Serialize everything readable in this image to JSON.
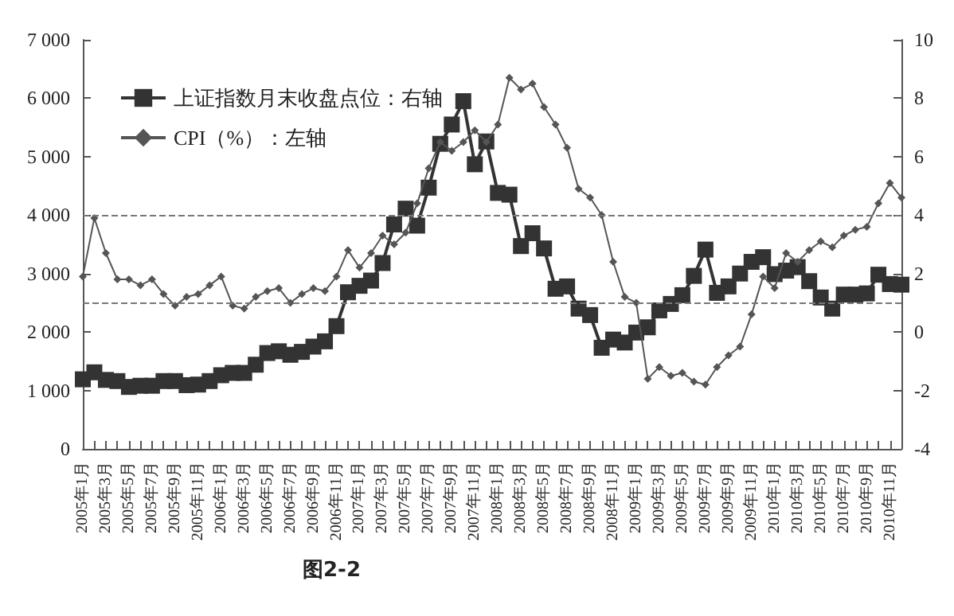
{
  "chart_data": {
    "type": "line",
    "categories": [
      "2005年1月",
      null,
      "2005年3月",
      null,
      "2005年5月",
      null,
      "2005年7月",
      null,
      "2005年9月",
      null,
      "2005年11月",
      null,
      "2006年1月",
      null,
      "2006年3月",
      null,
      "2006年5月",
      null,
      "2006年7月",
      null,
      "2006年9月",
      null,
      "2006年11月",
      null,
      "2007年1月",
      null,
      "2007年3月",
      null,
      "2007年5月",
      null,
      "2007年7月",
      null,
      "2007年9月",
      null,
      "2007年11月",
      null,
      "2008年1月",
      null,
      "2008年3月",
      null,
      "2008年5月",
      null,
      "2008年7月",
      null,
      "2008年9月",
      null,
      "2008年11月",
      null,
      "2009年1月",
      null,
      "2009年3月",
      null,
      "2009年5月",
      null,
      "2009年7月",
      null,
      "2009年9月",
      null,
      "2009年11月",
      null,
      "2010年1月",
      null,
      "2010年3月",
      null,
      "2010年5月",
      null,
      "2010年7月",
      null,
      "2010年9月",
      null,
      "2010年11月",
      null
    ],
    "series": [
      {
        "name": "上证指数月末收盘点位：右轴",
        "color": "#333333",
        "marker": "square",
        "axis": "y",
        "values": [
          1190,
          1310,
          1180,
          1160,
          1060,
          1080,
          1080,
          1160,
          1160,
          1090,
          1100,
          1160,
          1260,
          1300,
          1300,
          1440,
          1640,
          1670,
          1610,
          1660,
          1750,
          1840,
          2100,
          2680,
          2790,
          2880,
          3180,
          3840,
          4110,
          3820,
          4470,
          5220,
          5550,
          5950,
          4870,
          5260,
          4380,
          4350,
          3470,
          3690,
          3430,
          2740,
          2780,
          2400,
          2290,
          1730,
          1870,
          1820,
          1990,
          2080,
          2370,
          2480,
          2630,
          2960,
          3410,
          2670,
          2780,
          3000,
          3200,
          3280,
          2990,
          3050,
          3110,
          2870,
          2590,
          2400,
          2640,
          2640,
          2660,
          2980,
          2820,
          2810
        ]
      },
      {
        "name": "CPI（%）：左轴",
        "color": "#555555",
        "marker": "diamond",
        "axis": "y2",
        "values": [
          1.9,
          3.9,
          2.7,
          1.8,
          1.8,
          1.6,
          1.8,
          1.3,
          0.9,
          1.2,
          1.3,
          1.6,
          1.9,
          0.9,
          0.8,
          1.2,
          1.4,
          1.5,
          1.0,
          1.3,
          1.5,
          1.4,
          1.9,
          2.8,
          2.2,
          2.7,
          3.3,
          3.0,
          3.4,
          4.4,
          5.6,
          6.5,
          6.2,
          6.5,
          6.9,
          6.5,
          7.1,
          8.7,
          8.3,
          8.5,
          7.7,
          7.1,
          6.3,
          4.9,
          4.6,
          4.0,
          2.4,
          1.2,
          1.0,
          -1.6,
          -1.2,
          -1.5,
          -1.4,
          -1.7,
          -1.8,
          -1.2,
          -0.8,
          -0.5,
          0.6,
          1.9,
          1.5,
          2.7,
          2.4,
          2.8,
          3.1,
          2.9,
          3.3,
          3.5,
          3.6,
          4.4,
          5.1,
          4.6
        ]
      }
    ],
    "ylim": [
      0,
      7000
    ],
    "yticks": [
      0,
      {
        "value": 1000,
        "label": "1 000"
      },
      {
        "value": 2000,
        "label": "2 000"
      },
      {
        "value": 3000,
        "label": "3 000"
      },
      {
        "value": 4000,
        "label": "4 000"
      },
      {
        "value": 5000,
        "label": "5 000"
      },
      {
        "value": 6000,
        "label": "6 000"
      },
      {
        "value": 7000,
        "label": "7 000"
      }
    ],
    "y2lim": [
      -4,
      10
    ],
    "y2ticks": [
      -4,
      -2,
      0,
      2,
      4,
      6,
      8,
      10
    ],
    "ref_lines": [
      {
        "axis": "y2",
        "value": 4,
        "color": "#777777",
        "line_style": "dashed"
      },
      {
        "axis": "y2",
        "value": 1,
        "color": "#777777",
        "line_style": "dashed"
      }
    ],
    "grid": false,
    "legend": "top left",
    "annotations": [
      "图2-2"
    ]
  }
}
